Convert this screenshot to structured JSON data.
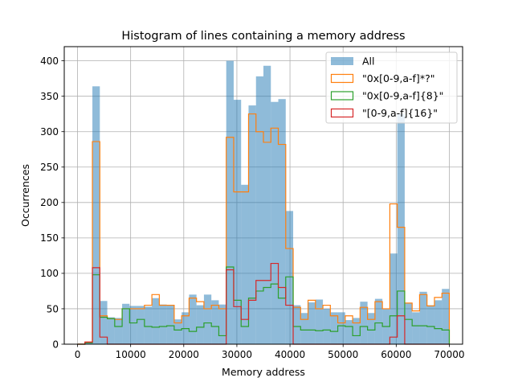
{
  "chart_data": {
    "type": "histogram",
    "title": "Histogram of lines containing a memory address",
    "xlabel": "Memory address",
    "ylabel": "Occurrences",
    "xlim": [
      -2500,
      72500
    ],
    "ylim": [
      0,
      420
    ],
    "xticks": [
      0,
      10000,
      20000,
      30000,
      40000,
      50000,
      60000,
      70000
    ],
    "yticks": [
      0,
      50,
      100,
      150,
      200,
      250,
      300,
      350,
      400
    ],
    "grid": true,
    "legend_position": "top-right",
    "bin_range": [
      0,
      70000
    ],
    "bin_count": 50,
    "series": [
      {
        "name": "All",
        "style": "filled",
        "color": "#1f77b4",
        "opacity": 0.5,
        "values": [
          0,
          3,
          364,
          61,
          38,
          37,
          57,
          54,
          54,
          53,
          65,
          56,
          55,
          35,
          45,
          70,
          55,
          70,
          62,
          56,
          400,
          345,
          225,
          337,
          378,
          393,
          342,
          346,
          188,
          55,
          44,
          59,
          63,
          50,
          45,
          45,
          34,
          37,
          60,
          44,
          64,
          50,
          128,
          325,
          58,
          45,
          74,
          55,
          62,
          78
        ]
      },
      {
        "name": "\"0x[0-9,a-f]*?\"",
        "style": "step",
        "color": "#ff7f0e",
        "values": [
          0,
          3,
          286,
          40,
          36,
          35,
          50,
          50,
          50,
          55,
          70,
          55,
          55,
          30,
          40,
          65,
          60,
          50,
          55,
          50,
          292,
          215,
          215,
          325,
          300,
          285,
          305,
          282,
          135,
          52,
          35,
          62,
          50,
          55,
          40,
          30,
          40,
          30,
          52,
          35,
          60,
          50,
          198,
          165,
          58,
          47,
          70,
          54,
          66,
          72
        ]
      },
      {
        "name": "\"0x[0-9,a-f]{8}\"",
        "style": "step",
        "color": "#2ca02c",
        "values": [
          0,
          2,
          98,
          38,
          36,
          25,
          50,
          30,
          35,
          25,
          24,
          25,
          26,
          20,
          22,
          18,
          24,
          30,
          25,
          12,
          109,
          62,
          25,
          65,
          75,
          80,
          85,
          65,
          95,
          25,
          20,
          20,
          19,
          20,
          18,
          26,
          25,
          12,
          25,
          20,
          30,
          25,
          40,
          75,
          35,
          26,
          26,
          25,
          22,
          20
        ]
      },
      {
        "name": "\"[0-9,a-f]{16}\"",
        "style": "step",
        "color": "#d62728",
        "values": [
          0,
          3,
          108,
          10,
          0,
          0,
          0,
          0,
          0,
          0,
          0,
          0,
          0,
          0,
          0,
          0,
          0,
          0,
          0,
          0,
          105,
          53,
          35,
          62,
          90,
          90,
          114,
          80,
          55,
          0,
          0,
          0,
          0,
          0,
          0,
          0,
          0,
          0,
          0,
          0,
          0,
          0,
          10,
          40,
          0,
          0,
          0,
          0,
          0,
          0
        ]
      }
    ]
  }
}
